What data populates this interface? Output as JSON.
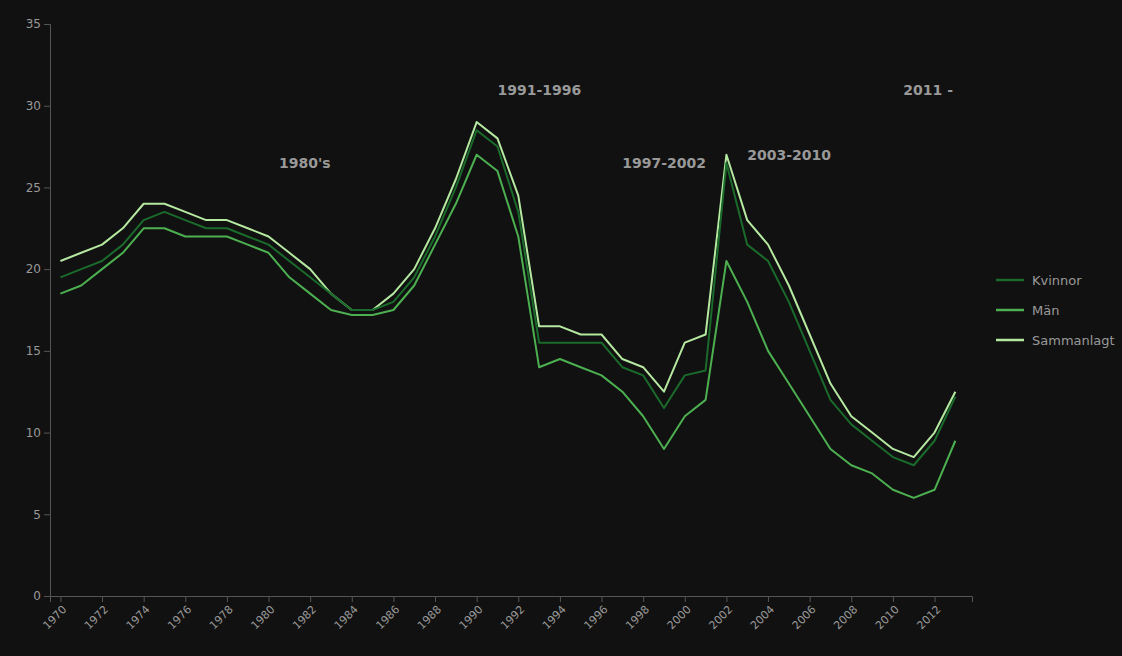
{
  "chart_data": {
    "type": "line",
    "x": [
      1970,
      1971,
      1972,
      1973,
      1974,
      1975,
      1976,
      1977,
      1978,
      1979,
      1980,
      1981,
      1982,
      1983,
      1984,
      1985,
      1986,
      1987,
      1988,
      1989,
      1990,
      1991,
      1992,
      1993,
      1994,
      1995,
      1996,
      1997,
      1998,
      1999,
      2000,
      2001,
      2002,
      2003,
      2004,
      2005,
      2006,
      2007,
      2008,
      2009,
      2010,
      2011,
      2012,
      2013
    ],
    "series": [
      {
        "name": "Kvinnor",
        "color": "#1a6b2b",
        "values": [
          19.5,
          20.0,
          20.5,
          21.5,
          23.0,
          23.5,
          23.0,
          22.5,
          22.5,
          22.0,
          21.5,
          20.5,
          19.5,
          18.5,
          17.5,
          17.5,
          18.0,
          19.5,
          22.0,
          25.0,
          28.5,
          27.5,
          23.5,
          15.5,
          15.5,
          15.5,
          15.5,
          14.0,
          13.5,
          11.5,
          13.5,
          13.8,
          26.5,
          21.5,
          20.5,
          18.0,
          15.0,
          12.0,
          10.5,
          9.5,
          8.5,
          8.0,
          9.5,
          12.2
        ]
      },
      {
        "name": "Män",
        "color": "#4caf50",
        "values": [
          18.5,
          19.0,
          20.0,
          21.0,
          22.5,
          22.5,
          22.0,
          22.0,
          22.0,
          21.5,
          21.0,
          19.5,
          18.5,
          17.5,
          17.2,
          17.2,
          17.5,
          19.0,
          21.5,
          24.0,
          27.0,
          26.0,
          22.0,
          14.0,
          14.5,
          14.0,
          13.5,
          12.5,
          11.0,
          9.0,
          11.0,
          12.0,
          20.5,
          18.0,
          15.0,
          13.0,
          11.0,
          9.0,
          8.0,
          7.5,
          6.5,
          6.0,
          6.5,
          9.5
        ]
      },
      {
        "name": "Sammanlagt",
        "color": "#b5e8a0",
        "values": [
          20.5,
          21.0,
          21.5,
          22.5,
          24.0,
          24.0,
          23.5,
          23.0,
          23.0,
          22.5,
          22.0,
          21.0,
          20.0,
          18.5,
          17.5,
          17.5,
          18.5,
          20.0,
          22.5,
          25.5,
          29.0,
          28.0,
          24.5,
          16.5,
          16.5,
          16.0,
          16.0,
          14.5,
          14.0,
          12.5,
          15.5,
          16.0,
          27.0,
          23.0,
          21.5,
          19.0,
          16.0,
          13.0,
          11.0,
          10.0,
          9.0,
          8.5,
          10.0,
          12.5
        ]
      }
    ],
    "xlim": [
      1969.5,
      2013.8
    ],
    "xticks": [
      1970,
      1972,
      1974,
      1976,
      1978,
      1980,
      1982,
      1984,
      1986,
      1988,
      1990,
      1992,
      1994,
      1996,
      1998,
      2000,
      2002,
      2004,
      2006,
      2008,
      2010,
      2012
    ],
    "ylim": [
      0,
      35
    ],
    "yticks": [
      0,
      5,
      10,
      15,
      20,
      25,
      30,
      35
    ],
    "annotations": [
      {
        "text": "1980's",
        "x": 1980.5,
        "y": 26.0
      },
      {
        "text": "1991-1996",
        "x": 1991.0,
        "y": 30.5
      },
      {
        "text": "1997-2002",
        "x": 1997.0,
        "y": 26.0
      },
      {
        "text": "2003-2010",
        "x": 2003.0,
        "y": 26.5
      },
      {
        "text": "2011 -",
        "x": 2010.5,
        "y": 30.5
      }
    ],
    "grid": false,
    "legend": "right"
  }
}
